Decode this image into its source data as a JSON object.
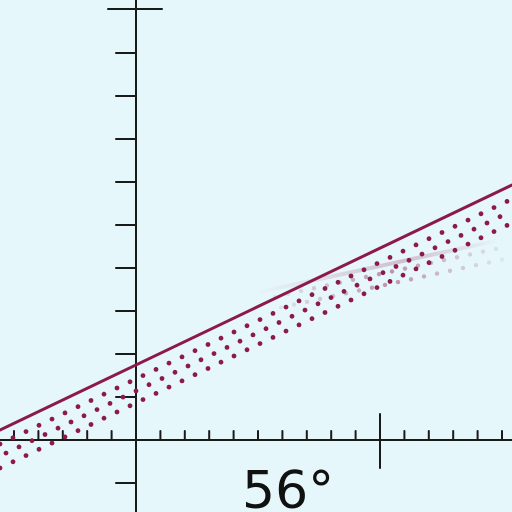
{
  "angle_label": "56°",
  "colors": {
    "background": "#e6f7fb",
    "axis": "#1a1a1a",
    "line": "#8b1a4a",
    "dots": "#8b1a4a",
    "text": "#111111"
  }
}
